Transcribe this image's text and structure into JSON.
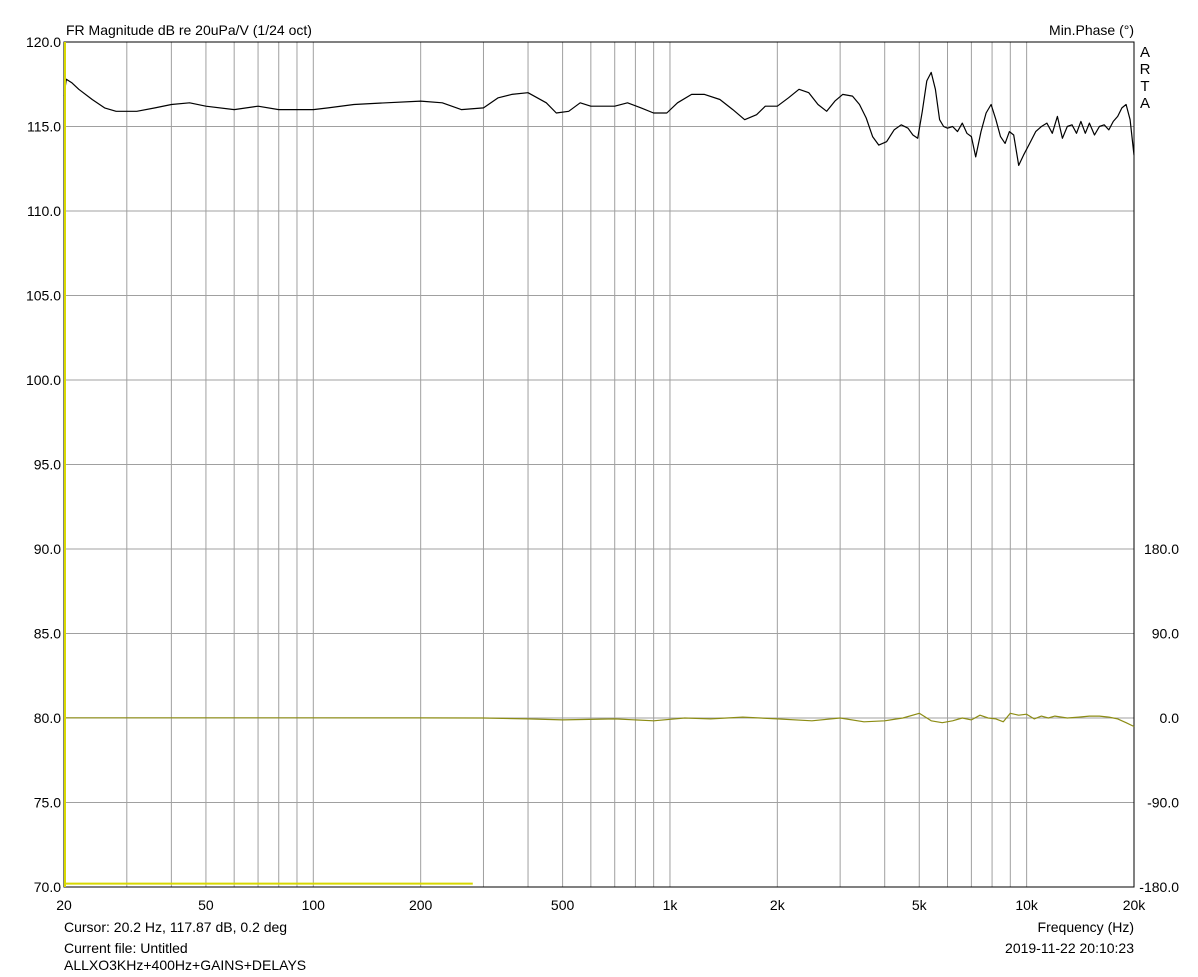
{
  "header": {
    "left_title": "FR Magnitude dB re 20uPa/V (1/24 oct)",
    "right_title": "Min.Phase (°)",
    "watermark": "ARTA"
  },
  "footer": {
    "cursor": "Cursor: 20.2 Hz, 117.87 dB, 0.2 deg",
    "current_file": "Current file: Untitled",
    "file_note": "ALLXO3KHz+400Hz+GAINS+DELAYS",
    "xlabel": "Frequency (Hz)",
    "timestamp": "2019-11-22  20:10:23"
  },
  "colors": {
    "magnitude": "#000000",
    "phase": "#8c8c14",
    "marker": "#d8d800",
    "grid": "#a0a0a0",
    "axis": "#000000"
  },
  "chart_data": {
    "type": "line",
    "x_scale": "log",
    "xlim": [
      20,
      20000
    ],
    "ylim": [
      70,
      120
    ],
    "y2lim": [
      -180,
      180
    ],
    "grid": true,
    "x_ticks": [
      {
        "v": 20,
        "label": "20"
      },
      {
        "v": 50,
        "label": "50"
      },
      {
        "v": 100,
        "label": "100"
      },
      {
        "v": 200,
        "label": "200"
      },
      {
        "v": 500,
        "label": "500"
      },
      {
        "v": 1000,
        "label": "1k"
      },
      {
        "v": 2000,
        "label": "2k"
      },
      {
        "v": 5000,
        "label": "5k"
      },
      {
        "v": 10000,
        "label": "10k"
      },
      {
        "v": 20000,
        "label": "20k"
      }
    ],
    "y_ticks": [
      "70.0",
      "75.0",
      "80.0",
      "85.0",
      "90.0",
      "95.0",
      "100.0",
      "105.0",
      "110.0",
      "115.0",
      "120.0"
    ],
    "y2_ticks": [
      {
        "v": 180,
        "label": "180.0"
      },
      {
        "v": 90,
        "label": "90.0"
      },
      {
        "v": 0,
        "label": "0.0"
      },
      {
        "v": -90,
        "label": "-90.0"
      },
      {
        "v": -180,
        "label": "-180.0"
      }
    ],
    "series": [
      {
        "kind": "magnitude_db",
        "points": [
          [
            20,
            116.8
          ],
          [
            20.3,
            117.8
          ],
          [
            21,
            117.6
          ],
          [
            22,
            117.2
          ],
          [
            24,
            116.6
          ],
          [
            26,
            116.1
          ],
          [
            28,
            115.9
          ],
          [
            32,
            115.9
          ],
          [
            36,
            116.1
          ],
          [
            40,
            116.3
          ],
          [
            45,
            116.4
          ],
          [
            50,
            116.2
          ],
          [
            60,
            116.0
          ],
          [
            70,
            116.2
          ],
          [
            80,
            116.0
          ],
          [
            100,
            116.0
          ],
          [
            110,
            116.1
          ],
          [
            130,
            116.3
          ],
          [
            160,
            116.4
          ],
          [
            200,
            116.5
          ],
          [
            230,
            116.4
          ],
          [
            260,
            116.0
          ],
          [
            300,
            116.1
          ],
          [
            330,
            116.7
          ],
          [
            360,
            116.9
          ],
          [
            400,
            117.0
          ],
          [
            450,
            116.4
          ],
          [
            480,
            115.8
          ],
          [
            520,
            115.9
          ],
          [
            560,
            116.4
          ],
          [
            600,
            116.2
          ],
          [
            700,
            116.2
          ],
          [
            760,
            116.4
          ],
          [
            830,
            116.1
          ],
          [
            900,
            115.8
          ],
          [
            980,
            115.8
          ],
          [
            1050,
            116.4
          ],
          [
            1150,
            116.9
          ],
          [
            1250,
            116.9
          ],
          [
            1380,
            116.6
          ],
          [
            1500,
            116.0
          ],
          [
            1620,
            115.4
          ],
          [
            1750,
            115.7
          ],
          [
            1850,
            116.2
          ],
          [
            2000,
            116.2
          ],
          [
            2150,
            116.7
          ],
          [
            2300,
            117.2
          ],
          [
            2450,
            117.0
          ],
          [
            2600,
            116.3
          ],
          [
            2750,
            115.9
          ],
          [
            2900,
            116.5
          ],
          [
            3050,
            116.9
          ],
          [
            3250,
            116.8
          ],
          [
            3400,
            116.3
          ],
          [
            3550,
            115.5
          ],
          [
            3700,
            114.4
          ],
          [
            3850,
            113.9
          ],
          [
            4050,
            114.1
          ],
          [
            4250,
            114.8
          ],
          [
            4450,
            115.1
          ],
          [
            4650,
            114.9
          ],
          [
            4800,
            114.5
          ],
          [
            4950,
            114.3
          ],
          [
            5100,
            115.9
          ],
          [
            5250,
            117.7
          ],
          [
            5400,
            118.2
          ],
          [
            5550,
            117.2
          ],
          [
            5700,
            115.4
          ],
          [
            5850,
            115.0
          ],
          [
            6000,
            114.9
          ],
          [
            6200,
            115.0
          ],
          [
            6400,
            114.7
          ],
          [
            6600,
            115.2
          ],
          [
            6800,
            114.6
          ],
          [
            7000,
            114.4
          ],
          [
            7200,
            113.2
          ],
          [
            7450,
            114.7
          ],
          [
            7700,
            115.8
          ],
          [
            7950,
            116.3
          ],
          [
            8200,
            115.4
          ],
          [
            8450,
            114.4
          ],
          [
            8700,
            114.0
          ],
          [
            8950,
            114.7
          ],
          [
            9200,
            114.5
          ],
          [
            9500,
            112.7
          ],
          [
            9800,
            113.3
          ],
          [
            10200,
            114.0
          ],
          [
            10600,
            114.7
          ],
          [
            11000,
            115.0
          ],
          [
            11400,
            115.2
          ],
          [
            11800,
            114.6
          ],
          [
            12200,
            115.6
          ],
          [
            12600,
            114.3
          ],
          [
            13000,
            115.0
          ],
          [
            13400,
            115.1
          ],
          [
            13800,
            114.6
          ],
          [
            14200,
            115.3
          ],
          [
            14600,
            114.6
          ],
          [
            15000,
            115.2
          ],
          [
            15500,
            114.5
          ],
          [
            16000,
            115.0
          ],
          [
            16500,
            115.1
          ],
          [
            17000,
            114.8
          ],
          [
            17500,
            115.3
          ],
          [
            18000,
            115.6
          ],
          [
            18500,
            116.1
          ],
          [
            19000,
            116.3
          ],
          [
            19500,
            115.4
          ],
          [
            20000,
            113.3
          ]
        ]
      },
      {
        "kind": "min_phase_deg",
        "points": [
          [
            20,
            0.2
          ],
          [
            100,
            0.2
          ],
          [
            200,
            0.1
          ],
          [
            300,
            0
          ],
          [
            400,
            -1
          ],
          [
            500,
            -2
          ],
          [
            700,
            -1
          ],
          [
            900,
            -3
          ],
          [
            1100,
            0
          ],
          [
            1300,
            -1
          ],
          [
            1600,
            1
          ],
          [
            2000,
            -1
          ],
          [
            2500,
            -3
          ],
          [
            3000,
            0
          ],
          [
            3500,
            -4
          ],
          [
            4000,
            -3
          ],
          [
            4500,
            0
          ],
          [
            5000,
            5
          ],
          [
            5400,
            -3
          ],
          [
            5800,
            -5
          ],
          [
            6200,
            -3
          ],
          [
            6600,
            0
          ],
          [
            7000,
            -2
          ],
          [
            7400,
            3
          ],
          [
            7800,
            0
          ],
          [
            8200,
            -1
          ],
          [
            8600,
            -4
          ],
          [
            9000,
            5
          ],
          [
            9500,
            3
          ],
          [
            10000,
            4
          ],
          [
            10500,
            -1
          ],
          [
            11000,
            2
          ],
          [
            11500,
            0
          ],
          [
            12000,
            2
          ],
          [
            13000,
            0
          ],
          [
            14000,
            1
          ],
          [
            15000,
            2
          ],
          [
            16000,
            2
          ],
          [
            17000,
            1
          ],
          [
            18000,
            -1
          ],
          [
            19000,
            -5
          ],
          [
            20000,
            -9
          ]
        ]
      },
      {
        "kind": "cursor_marker",
        "points": [
          [
            20,
            70.2
          ],
          [
            280,
            70.2
          ]
        ]
      }
    ]
  }
}
